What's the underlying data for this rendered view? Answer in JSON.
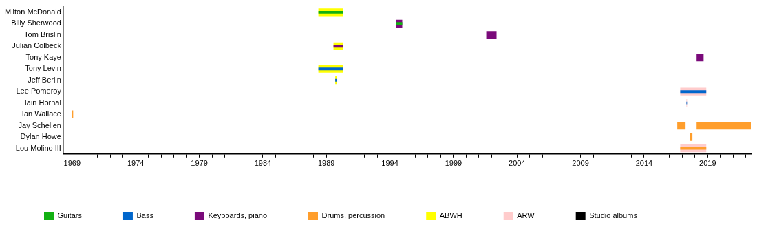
{
  "chart_data": {
    "type": "bar",
    "orientation": "horizontal",
    "categories": [
      "Milton McDonald",
      "Billy Sherwood",
      "Tom Brislin",
      "Julian Colbeck",
      "Tony Kaye",
      "Tony Levin",
      "Jeff Berlin",
      "Lee Pomeroy",
      "Iain Hornal",
      "Ian Wallace",
      "Jay Schellen",
      "Dylan Howe",
      "Lou Molino III"
    ],
    "series": [
      {
        "name": "Guitars",
        "color": "#12b012",
        "base": [
          1988.37,
          1994.49,
          null,
          null,
          null,
          null,
          null,
          null,
          null,
          null,
          null,
          null,
          null
        ],
        "values": [
          1.95,
          0.48,
          null,
          null,
          null,
          null,
          null,
          null,
          null,
          null,
          null,
          null,
          null
        ]
      },
      {
        "name": "Bass",
        "color": "#0066cc",
        "base": [
          null,
          null,
          null,
          null,
          null,
          1988.37,
          1989.7,
          2016.84,
          2017.33,
          null,
          null,
          null,
          null
        ],
        "values": [
          null,
          null,
          null,
          null,
          null,
          1.95,
          0.1,
          2.05,
          0.1,
          null,
          null,
          null,
          null
        ]
      },
      {
        "name": "Keyboards, piano",
        "color": "#7a0a7a",
        "base": [
          null,
          1994.49,
          2001.58,
          1989.56,
          2018.13,
          null,
          null,
          null,
          null,
          null,
          null,
          null,
          null
        ],
        "values": [
          null,
          0.48,
          0.81,
          0.76,
          0.55,
          null,
          null,
          null,
          null,
          null,
          null,
          null,
          null
        ]
      },
      {
        "name": "Drums, percussion",
        "color": "#ff9e2c",
        "base": [
          null,
          null,
          null,
          null,
          null,
          null,
          null,
          null,
          null,
          1969.0,
          2016.61,
          2017.59,
          2016.84
        ],
        "values": [
          null,
          null,
          null,
          null,
          null,
          null,
          null,
          null,
          null,
          0.08,
          0.65,
          0.21,
          2.05
        ]
      },
      {
        "color": "#ff9e2c",
        "base": [
          null,
          null,
          null,
          null,
          null,
          null,
          null,
          null,
          null,
          null,
          2018.13,
          null,
          null
        ],
        "values": [
          null,
          null,
          null,
          null,
          null,
          null,
          null,
          null,
          null,
          null,
          4.32,
          null,
          null
        ]
      },
      {
        "name": "ABWH",
        "color": "#ffff00",
        "base": [
          1988.37,
          null,
          null,
          1989.56,
          null,
          1988.37,
          1989.7,
          null,
          null,
          null,
          null,
          null,
          null
        ],
        "values": [
          1.95,
          null,
          null,
          0.76,
          null,
          1.95,
          0.1,
          null,
          null,
          null,
          null,
          null,
          null
        ]
      },
      {
        "name": "ARW",
        "color": "#ffcccc",
        "base": [
          null,
          null,
          null,
          null,
          null,
          null,
          null,
          2016.84,
          2017.33,
          null,
          null,
          null,
          2016.84
        ],
        "values": [
          null,
          null,
          null,
          null,
          null,
          null,
          null,
          2.05,
          0.1,
          null,
          null,
          null,
          2.05
        ]
      },
      {
        "name": "Studio albums",
        "color": "#000000",
        "values": [
          null,
          null,
          null,
          null,
          null,
          null,
          null,
          null,
          null,
          null,
          null,
          null,
          null
        ]
      }
    ],
    "xlim": [
      1968.3,
      2022.45
    ],
    "xticks": [
      1969,
      {
        "value": 1970,
        "label": null
      },
      {
        "value": 1971,
        "label": null
      },
      {
        "value": 1972,
        "label": null
      },
      {
        "value": 1973,
        "label": null
      },
      1974,
      {
        "value": 1975,
        "label": null
      },
      {
        "value": 1976,
        "label": null
      },
      {
        "value": 1977,
        "label": null
      },
      {
        "value": 1978,
        "label": null
      },
      1979,
      {
        "value": 1980,
        "label": null
      },
      {
        "value": 1981,
        "label": null
      },
      {
        "value": 1982,
        "label": null
      },
      {
        "value": 1983,
        "label": null
      },
      1984,
      {
        "value": 1985,
        "label": null
      },
      {
        "value": 1986,
        "label": null
      },
      {
        "value": 1987,
        "label": null
      },
      {
        "value": 1988,
        "label": null
      },
      1989,
      {
        "value": 1990,
        "label": null
      },
      {
        "value": 1991,
        "label": null
      },
      {
        "value": 1992,
        "label": null
      },
      {
        "value": 1993,
        "label": null
      },
      1994,
      {
        "value": 1995,
        "label": null
      },
      {
        "value": 1996,
        "label": null
      },
      {
        "value": 1997,
        "label": null
      },
      {
        "value": 1998,
        "label": null
      },
      1999,
      {
        "value": 2000,
        "label": null
      },
      {
        "value": 2001,
        "label": null
      },
      {
        "value": 2002,
        "label": null
      },
      {
        "value": 2003,
        "label": null
      },
      2004,
      {
        "value": 2005,
        "label": null
      },
      {
        "value": 2006,
        "label": null
      },
      {
        "value": 2007,
        "label": null
      },
      {
        "value": 2008,
        "label": null
      },
      2009,
      {
        "value": 2010,
        "label": null
      },
      {
        "value": 2011,
        "label": null
      },
      {
        "value": 2012,
        "label": null
      },
      {
        "value": 2013,
        "label": null
      },
      2014,
      {
        "value": 2015,
        "label": null
      },
      {
        "value": 2016,
        "label": null
      },
      {
        "value": 2017,
        "label": null
      },
      {
        "value": 2018,
        "label": null
      },
      2019,
      {
        "value": 2020,
        "label": null
      },
      {
        "value": 2021,
        "label": null
      },
      {
        "value": 2022,
        "label": null
      }
    ],
    "legend": "bottom"
  }
}
